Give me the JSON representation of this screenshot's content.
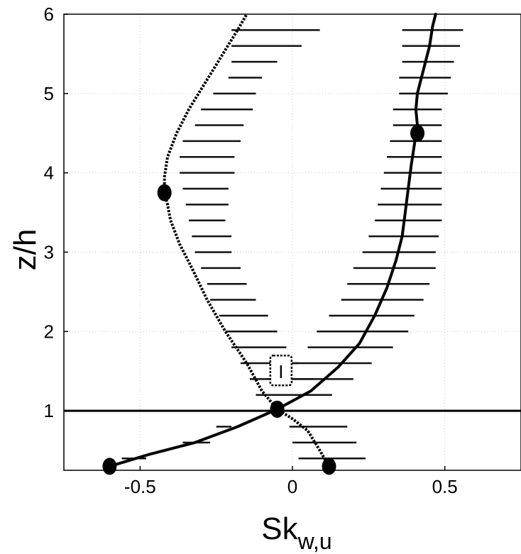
{
  "chart_data": {
    "type": "line",
    "xlabel": "Sk",
    "xlabel_sub": "w,u",
    "ylabel": "z/h",
    "xlim": [
      -0.75,
      0.75
    ],
    "ylim": [
      0.25,
      6
    ],
    "xticks": [
      -0.5,
      0,
      0.5
    ],
    "xtick_labels": [
      "-0.5",
      "0",
      "0.5"
    ],
    "yticks": [
      1,
      2,
      3,
      4,
      5,
      6
    ],
    "ytick_labels": [
      "1",
      "2",
      "3",
      "4",
      "5",
      "6"
    ],
    "grid": true,
    "hline": 1,
    "annotation": "I",
    "annotation_pos": [
      -0.04,
      1.5
    ],
    "series": [
      {
        "style": "solid",
        "x": [
          -0.6,
          -0.47,
          -0.32,
          -0.18,
          -0.05,
          0.06,
          0.15,
          0.22,
          0.27,
          0.31,
          0.34,
          0.36,
          0.37,
          0.38,
          0.39,
          0.4,
          0.405,
          0.41,
          0.405,
          0.41,
          0.43,
          0.45,
          0.46,
          0.47
        ],
        "y": [
          0.3,
          0.45,
          0.6,
          0.8,
          1.02,
          1.25,
          1.55,
          1.85,
          2.2,
          2.55,
          2.9,
          3.2,
          3.5,
          3.8,
          4.1,
          4.35,
          4.5,
          4.6,
          4.8,
          5.0,
          5.3,
          5.6,
          5.85,
          6.0
        ],
        "markers": [
          [
            -0.6,
            0.3
          ],
          [
            -0.05,
            1.02
          ],
          [
            0.41,
            4.5
          ]
        ]
      },
      {
        "style": "dotted",
        "x": [
          0.12,
          0.09,
          0.05,
          0.0,
          -0.05,
          -0.1,
          -0.15,
          -0.22,
          -0.28,
          -0.33,
          -0.37,
          -0.4,
          -0.41,
          -0.42,
          -0.42,
          -0.41,
          -0.38,
          -0.34,
          -0.3,
          -0.26,
          -0.22,
          -0.18,
          -0.15
        ],
        "y": [
          0.3,
          0.5,
          0.75,
          0.9,
          1.02,
          1.25,
          1.6,
          2.0,
          2.4,
          2.8,
          3.1,
          3.4,
          3.6,
          3.75,
          3.95,
          4.2,
          4.5,
          4.8,
          5.05,
          5.3,
          5.55,
          5.8,
          6.0
        ],
        "markers": [
          [
            0.12,
            0.3
          ],
          [
            -0.05,
            1.02
          ],
          [
            -0.42,
            3.75
          ]
        ]
      }
    ],
    "errorbars": [
      {
        "y": 5.8,
        "xmin": -0.2,
        "xmax": 0.09
      },
      {
        "y": 5.6,
        "xmin": -0.2,
        "xmax": 0.03
      },
      {
        "y": 5.4,
        "xmin": -0.2,
        "xmax": -0.05
      },
      {
        "y": 5.2,
        "xmin": -0.21,
        "xmax": -0.1
      },
      {
        "y": 5.0,
        "xmin": -0.26,
        "xmax": -0.12
      },
      {
        "y": 4.8,
        "xmin": -0.3,
        "xmax": -0.13
      },
      {
        "y": 4.6,
        "xmin": -0.32,
        "xmax": -0.16
      },
      {
        "y": 4.4,
        "xmin": -0.36,
        "xmax": -0.17
      },
      {
        "y": 4.2,
        "xmin": -0.37,
        "xmax": -0.19
      },
      {
        "y": 4.0,
        "xmin": -0.37,
        "xmax": -0.19
      },
      {
        "y": 3.8,
        "xmin": -0.36,
        "xmax": -0.21
      },
      {
        "y": 3.6,
        "xmin": -0.35,
        "xmax": -0.21
      },
      {
        "y": 3.4,
        "xmin": -0.34,
        "xmax": -0.22
      },
      {
        "y": 3.2,
        "xmin": -0.33,
        "xmax": -0.2
      },
      {
        "y": 3.0,
        "xmin": -0.32,
        "xmax": -0.2
      },
      {
        "y": 2.8,
        "xmin": -0.3,
        "xmax": -0.17
      },
      {
        "y": 2.6,
        "xmin": -0.28,
        "xmax": -0.15
      },
      {
        "y": 2.4,
        "xmin": -0.27,
        "xmax": -0.12
      },
      {
        "y": 2.2,
        "xmin": -0.24,
        "xmax": -0.08
      },
      {
        "y": 2.0,
        "xmin": -0.22,
        "xmax": -0.05
      },
      {
        "y": 1.8,
        "xmin": -0.2,
        "xmax": -0.02
      },
      {
        "y": 1.6,
        "xmin": -0.17,
        "xmax": 0.02
      },
      {
        "y": 1.4,
        "xmin": -0.14,
        "xmax": 0.07
      },
      {
        "y": 1.2,
        "xmin": -0.1,
        "xmax": 0.12
      },
      {
        "y": 0.8,
        "xmin": -0.01,
        "xmax": 0.18
      },
      {
        "y": 0.6,
        "xmin": 0.0,
        "xmax": 0.21
      },
      {
        "y": 0.4,
        "xmin": 0.02,
        "xmax": 0.24
      },
      {
        "y": 5.8,
        "xmin": 0.36,
        "xmax": 0.56
      },
      {
        "y": 5.6,
        "xmin": 0.36,
        "xmax": 0.55
      },
      {
        "y": 5.4,
        "xmin": 0.36,
        "xmax": 0.53
      },
      {
        "y": 5.2,
        "xmin": 0.35,
        "xmax": 0.52
      },
      {
        "y": 5.0,
        "xmin": 0.35,
        "xmax": 0.51
      },
      {
        "y": 4.8,
        "xmin": 0.33,
        "xmax": 0.49
      },
      {
        "y": 4.6,
        "xmin": 0.33,
        "xmax": 0.49
      },
      {
        "y": 4.4,
        "xmin": 0.32,
        "xmax": 0.49
      },
      {
        "y": 4.2,
        "xmin": 0.31,
        "xmax": 0.49
      },
      {
        "y": 4.0,
        "xmin": 0.3,
        "xmax": 0.49
      },
      {
        "y": 3.8,
        "xmin": 0.29,
        "xmax": 0.49
      },
      {
        "y": 3.6,
        "xmin": 0.28,
        "xmax": 0.49
      },
      {
        "y": 3.4,
        "xmin": 0.27,
        "xmax": 0.49
      },
      {
        "y": 3.2,
        "xmin": 0.25,
        "xmax": 0.48
      },
      {
        "y": 3.0,
        "xmin": 0.23,
        "xmax": 0.47
      },
      {
        "y": 2.8,
        "xmin": 0.2,
        "xmax": 0.47
      },
      {
        "y": 2.6,
        "xmin": 0.18,
        "xmax": 0.45
      },
      {
        "y": 2.4,
        "xmin": 0.16,
        "xmax": 0.43
      },
      {
        "y": 2.2,
        "xmin": 0.12,
        "xmax": 0.4
      },
      {
        "y": 2.0,
        "xmin": 0.08,
        "xmax": 0.38
      },
      {
        "y": 1.8,
        "xmin": 0.05,
        "xmax": 0.33
      },
      {
        "y": 1.6,
        "xmin": 0.0,
        "xmax": 0.26
      },
      {
        "y": 1.4,
        "xmin": -0.04,
        "xmax": 0.2
      },
      {
        "y": 1.2,
        "xmin": -0.12,
        "xmax": 0.13
      },
      {
        "y": 0.8,
        "xmin": -0.25,
        "xmax": -0.2
      },
      {
        "y": 0.6,
        "xmin": -0.36,
        "xmax": -0.27
      },
      {
        "y": 0.4,
        "xmin": -0.56,
        "xmax": -0.48
      }
    ]
  }
}
